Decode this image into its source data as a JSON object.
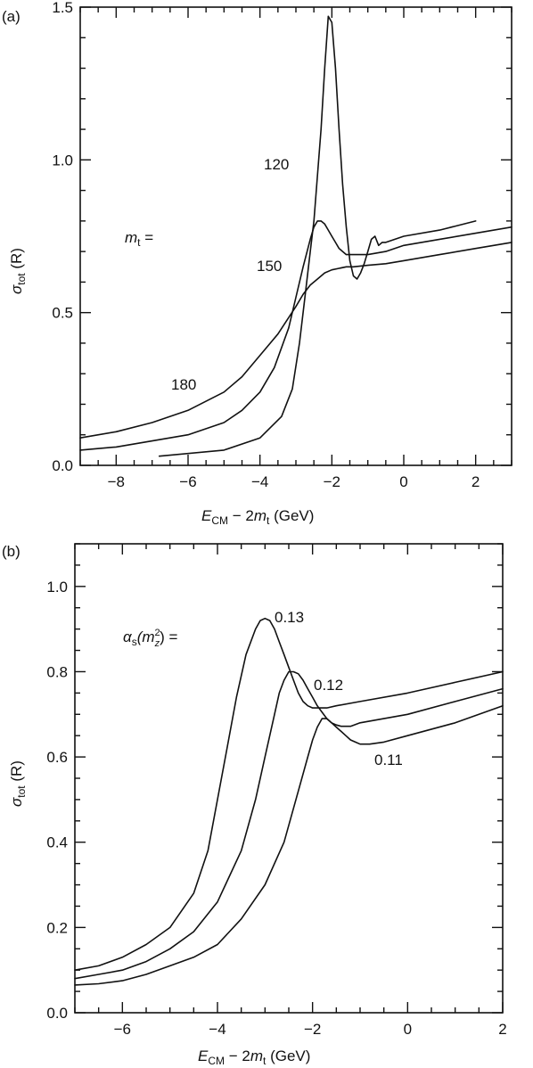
{
  "chart_data": [
    {
      "panel": "(a)",
      "type": "line",
      "xlabel_main": "E",
      "xlabel_sub": "CM",
      "xlabel_rest": " − 2",
      "xlabel_m": "m",
      "xlabel_msub": "t",
      "xlabel_unit": "  (GeV)",
      "ylabel_main": "σ",
      "ylabel_sub": "tot",
      "ylabel_rest": "  (R)",
      "xlim": [
        -9,
        3
      ],
      "ylim": [
        0,
        1.5
      ],
      "xticks": [
        -8,
        -6,
        -4,
        -2,
        0,
        2
      ],
      "xtick_labels": [
        "−8",
        "−6",
        "−4",
        "−2",
        "0",
        "2"
      ],
      "yticks": [
        0.0,
        0.5,
        1.0,
        1.5
      ],
      "ytick_labels": [
        "0.0",
        "0.5",
        "1.0",
        "1.5"
      ],
      "legend_title_m": "m",
      "legend_title_sub": "t",
      "legend_title_rest": " =",
      "series": [
        {
          "name": "120",
          "x": [
            -6.8,
            -5.0,
            -4.0,
            -3.4,
            -3.1,
            -2.9,
            -2.75,
            -2.6,
            -2.5,
            -2.4,
            -2.3,
            -2.2,
            -2.1,
            -2.0,
            -1.9,
            -1.8,
            -1.7,
            -1.6,
            -1.5,
            -1.4,
            -1.3,
            -1.2,
            -1.1,
            -1.0,
            -0.9,
            -0.8,
            -0.7,
            -0.6,
            -0.5,
            0.0,
            1.0,
            2.0
          ],
          "y": [
            0.03,
            0.05,
            0.09,
            0.16,
            0.25,
            0.4,
            0.55,
            0.7,
            0.8,
            0.95,
            1.1,
            1.3,
            1.47,
            1.45,
            1.3,
            1.1,
            0.92,
            0.78,
            0.67,
            0.62,
            0.61,
            0.63,
            0.66,
            0.7,
            0.74,
            0.75,
            0.72,
            0.73,
            0.73,
            0.75,
            0.77,
            0.8
          ]
        },
        {
          "name": "150",
          "x": [
            -9.0,
            -8.0,
            -7.0,
            -6.0,
            -5.0,
            -4.5,
            -4.0,
            -3.6,
            -3.2,
            -3.0,
            -2.8,
            -2.6,
            -2.5,
            -2.4,
            -2.3,
            -2.2,
            -2.1,
            -2.0,
            -1.9,
            -1.8,
            -1.7,
            -1.6,
            -1.5,
            -1.4,
            -1.2,
            -1.0,
            -0.5,
            0.0,
            1.0,
            2.0,
            3.0
          ],
          "y": [
            0.05,
            0.06,
            0.08,
            0.1,
            0.14,
            0.18,
            0.24,
            0.32,
            0.45,
            0.55,
            0.65,
            0.74,
            0.78,
            0.8,
            0.8,
            0.79,
            0.77,
            0.75,
            0.73,
            0.71,
            0.7,
            0.69,
            0.69,
            0.69,
            0.69,
            0.69,
            0.7,
            0.72,
            0.74,
            0.76,
            0.78
          ]
        },
        {
          "name": "180",
          "x": [
            -9.0,
            -8.0,
            -7.0,
            -6.0,
            -5.0,
            -4.5,
            -4.0,
            -3.5,
            -3.0,
            -2.8,
            -2.6,
            -2.4,
            -2.2,
            -2.0,
            -1.8,
            -1.6,
            -1.4,
            -1.0,
            -0.5,
            0.0,
            1.0,
            2.0,
            3.0
          ],
          "y": [
            0.09,
            0.11,
            0.14,
            0.18,
            0.24,
            0.29,
            0.36,
            0.43,
            0.52,
            0.56,
            0.59,
            0.61,
            0.63,
            0.64,
            0.645,
            0.65,
            0.65,
            0.655,
            0.66,
            0.67,
            0.69,
            0.71,
            0.73
          ]
        }
      ],
      "curve_labels": [
        "120",
        "150",
        "180"
      ]
    },
    {
      "panel": "(b)",
      "type": "line",
      "xlabel_main": "E",
      "xlabel_sub": "CM",
      "xlabel_rest": " − 2",
      "xlabel_m": "m",
      "xlabel_msub": "t",
      "xlabel_unit": "  (GeV)",
      "ylabel_main": "σ",
      "ylabel_sub": "tot",
      "ylabel_rest": "  (R)",
      "xlim": [
        -7,
        2
      ],
      "ylim": [
        0,
        1.1
      ],
      "xticks": [
        -6,
        -4,
        -2,
        0,
        2
      ],
      "xtick_labels": [
        "−6",
        "−4",
        "−2",
        "0",
        "2"
      ],
      "yticks": [
        0.0,
        0.2,
        0.4,
        0.6,
        0.8,
        1.0
      ],
      "ytick_labels": [
        "0.0",
        "0.2",
        "0.4",
        "0.6",
        "0.8",
        "1.0"
      ],
      "legend_title_alpha": "α",
      "legend_title_sub": "s",
      "legend_title_arg": "(m",
      "legend_title_sup": "2",
      "legend_title_zsub": "z",
      "legend_title_rest": ") =",
      "series": [
        {
          "name": "0.13",
          "x": [
            -7.0,
            -6.5,
            -6.0,
            -5.5,
            -5.0,
            -4.5,
            -4.2,
            -4.0,
            -3.8,
            -3.6,
            -3.4,
            -3.2,
            -3.1,
            -3.0,
            -2.9,
            -2.8,
            -2.7,
            -2.6,
            -2.5,
            -2.4,
            -2.3,
            -2.2,
            -2.1,
            -2.0,
            -1.9,
            -1.8,
            -1.7,
            -1.5,
            -1.0,
            0.0,
            1.0,
            2.0
          ],
          "y": [
            0.1,
            0.11,
            0.13,
            0.16,
            0.2,
            0.28,
            0.38,
            0.5,
            0.62,
            0.74,
            0.84,
            0.9,
            0.92,
            0.925,
            0.92,
            0.9,
            0.87,
            0.84,
            0.81,
            0.78,
            0.75,
            0.73,
            0.72,
            0.715,
            0.715,
            0.715,
            0.715,
            0.72,
            0.73,
            0.75,
            0.775,
            0.8
          ]
        },
        {
          "name": "0.12",
          "x": [
            -7.0,
            -6.5,
            -6.0,
            -5.5,
            -5.0,
            -4.5,
            -4.0,
            -3.5,
            -3.2,
            -3.0,
            -2.8,
            -2.7,
            -2.6,
            -2.5,
            -2.4,
            -2.3,
            -2.2,
            -2.1,
            -2.0,
            -1.9,
            -1.8,
            -1.7,
            -1.6,
            -1.5,
            -1.4,
            -1.2,
            -1.0,
            0.0,
            1.0,
            2.0
          ],
          "y": [
            0.08,
            0.09,
            0.1,
            0.12,
            0.15,
            0.19,
            0.26,
            0.38,
            0.5,
            0.6,
            0.7,
            0.75,
            0.78,
            0.8,
            0.8,
            0.795,
            0.78,
            0.76,
            0.74,
            0.72,
            0.705,
            0.69,
            0.68,
            0.675,
            0.672,
            0.672,
            0.68,
            0.7,
            0.73,
            0.76
          ]
        },
        {
          "name": "0.11",
          "x": [
            -7.0,
            -6.5,
            -6.0,
            -5.5,
            -5.0,
            -4.5,
            -4.0,
            -3.5,
            -3.0,
            -2.6,
            -2.3,
            -2.1,
            -2.0,
            -1.9,
            -1.8,
            -1.7,
            -1.6,
            -1.5,
            -1.4,
            -1.3,
            -1.2,
            -1.1,
            -1.0,
            -0.9,
            -0.8,
            -0.5,
            0.0,
            1.0,
            2.0
          ],
          "y": [
            0.065,
            0.068,
            0.075,
            0.09,
            0.11,
            0.13,
            0.16,
            0.22,
            0.3,
            0.4,
            0.52,
            0.6,
            0.64,
            0.67,
            0.69,
            0.69,
            0.68,
            0.67,
            0.66,
            0.65,
            0.64,
            0.635,
            0.63,
            0.63,
            0.63,
            0.635,
            0.65,
            0.68,
            0.72
          ]
        }
      ],
      "curve_labels": [
        "0.13",
        "0.12",
        "0.11"
      ]
    }
  ]
}
